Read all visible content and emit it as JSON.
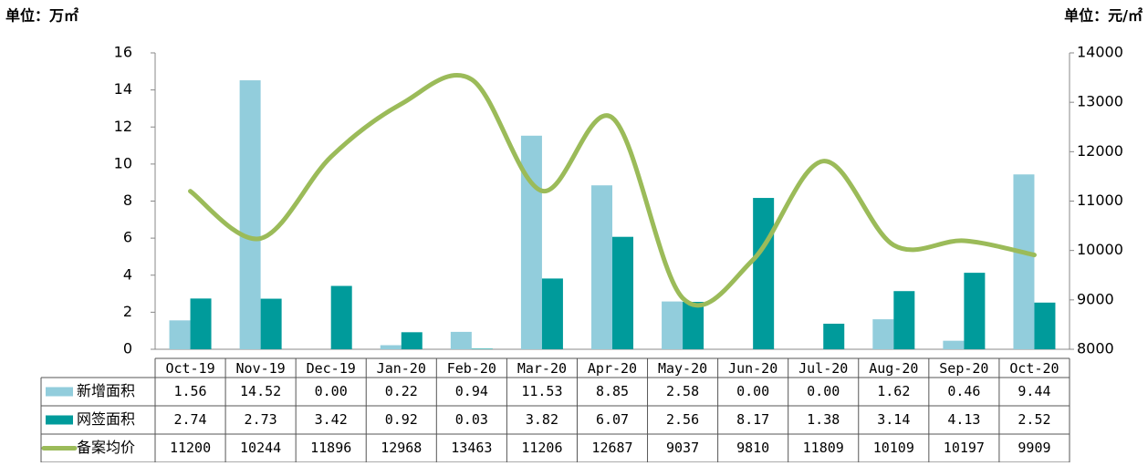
{
  "chart_data": {
    "type": "bar",
    "y_unit_label": "单位：万㎡",
    "y2_unit_label": "单位：元/㎡",
    "categories": [
      "Oct-19",
      "Nov-19",
      "Dec-19",
      "Jan-20",
      "Feb-20",
      "Mar-20",
      "Apr-20",
      "May-20",
      "Jun-20",
      "Jul-20",
      "Aug-20",
      "Sep-20",
      "Oct-20"
    ],
    "series": [
      {
        "name": "新增面积",
        "color": "#92cddc",
        "values": [
          1.56,
          14.52,
          0,
          0.22,
          0.94,
          11.53,
          8.85,
          2.58,
          0,
          0,
          1.62,
          0.46,
          9.44
        ],
        "value_labels": [
          "1.56",
          "14.52",
          "0.00",
          "0.22",
          "0.94",
          "11.53",
          "8.85",
          "2.58",
          "0.00",
          "0.00",
          "1.62",
          "0.46",
          "9.44"
        ]
      },
      {
        "name": "网签面积",
        "color": "#009b9b",
        "values": [
          2.74,
          2.73,
          3.42,
          0.92,
          0.03,
          3.82,
          6.07,
          2.56,
          8.17,
          1.38,
          3.14,
          4.13,
          2.52
        ]
      },
      {
        "name": "备案均价",
        "color": "#9bbb59",
        "type": "line",
        "axis": "y2",
        "values": [
          11200,
          10244,
          11896,
          12968,
          13463,
          11206,
          12687,
          9037,
          9810,
          11809,
          10109,
          10197,
          9909
        ]
      }
    ],
    "ylim": [
      0,
      16
    ],
    "yticks": [
      0,
      2,
      4,
      6,
      8,
      10,
      12,
      14,
      16
    ],
    "y2lim": [
      8000,
      14000
    ],
    "y2ticks": [
      8000,
      9000,
      10000,
      11000,
      12000,
      13000,
      14000
    ],
    "grid": false
  }
}
